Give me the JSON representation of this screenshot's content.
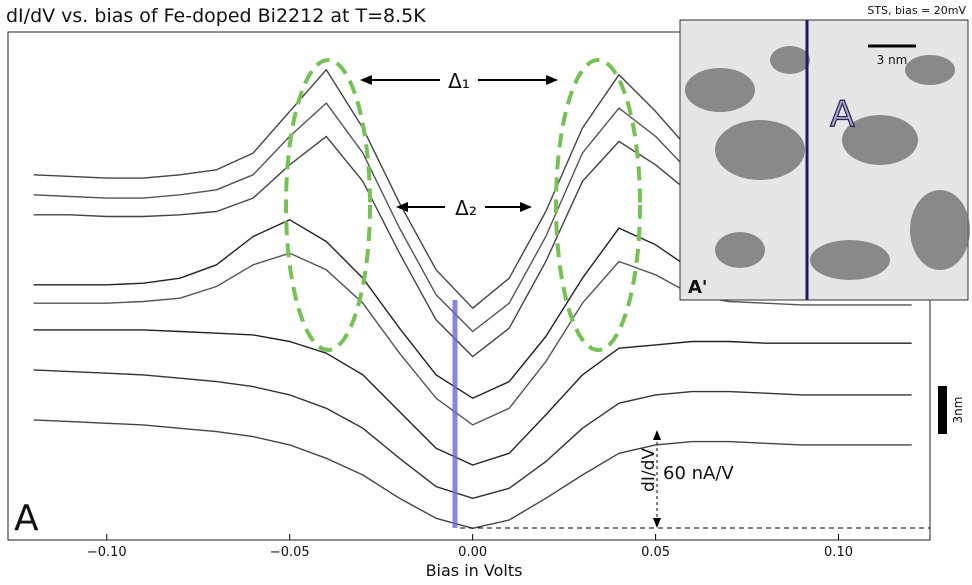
{
  "chart_data": {
    "type": "line",
    "title": "dI/dV vs. bias of Fe-doped Bi2212 at T=8.5K",
    "x_label": "Bias in Volts",
    "panel_label": "A",
    "annotations": {
      "delta1": "Δ₁",
      "delta2": "Δ₂",
      "scale_axis": "dI/dV",
      "scale_value": "60 nA/V",
      "distance_bar": "3nm"
    },
    "inset": {
      "title": "STS, bias = 20mV",
      "scale_bar": "3 nm",
      "end_a": "A",
      "end_a_prime": "A'"
    },
    "x": [
      -0.12,
      -0.11,
      -0.1,
      -0.09,
      -0.08,
      -0.07,
      -0.06,
      -0.05,
      -0.04,
      -0.03,
      -0.02,
      -0.01,
      0.0,
      0.01,
      0.02,
      0.03,
      0.04,
      0.05,
      0.06,
      0.07,
      0.08,
      0.09,
      0.1,
      0.11,
      0.12
    ],
    "series": [
      {
        "color": "#444444",
        "values": [
          212,
          211,
          210,
          210,
          212,
          215,
          225,
          250,
          275,
          240,
          195,
          155,
          132,
          150,
          190,
          240,
          272,
          250,
          225,
          215,
          212,
          210,
          210,
          210,
          210
        ]
      },
      {
        "color": "#555555",
        "values": [
          200,
          199,
          198,
          198,
          200,
          203,
          212,
          235,
          255,
          225,
          180,
          140,
          118,
          135,
          175,
          225,
          252,
          235,
          212,
          203,
          200,
          198,
          198,
          198,
          198
        ]
      },
      {
        "color": "#444444",
        "values": [
          188,
          188,
          187,
          187,
          188,
          190,
          198,
          218,
          235,
          208,
          165,
          125,
          103,
          120,
          160,
          208,
          232,
          218,
          200,
          191,
          188,
          187,
          187,
          187,
          187
        ]
      },
      {
        "color": "#222222",
        "values": [
          146,
          146,
          146,
          147,
          150,
          158,
          175,
          185,
          172,
          150,
          120,
          92,
          78,
          88,
          115,
          150,
          180,
          170,
          155,
          150,
          148,
          147,
          147,
          146,
          146
        ]
      },
      {
        "color": "#555555",
        "values": [
          135,
          135,
          135,
          136,
          138,
          145,
          158,
          165,
          155,
          135,
          105,
          78,
          62,
          72,
          100,
          135,
          160,
          152,
          140,
          136,
          135,
          134,
          134,
          134,
          134
        ]
      },
      {
        "color": "#222222",
        "values": [
          119,
          119,
          119,
          119,
          118,
          117,
          116,
          112,
          105,
          92,
          70,
          48,
          38,
          45,
          68,
          92,
          108,
          110,
          112,
          112,
          111,
          111,
          111,
          111,
          111
        ]
      },
      {
        "color": "#333333",
        "values": [
          95,
          94,
          93,
          92,
          90,
          88,
          85,
          80,
          72,
          60,
          42,
          25,
          18,
          24,
          40,
          60,
          75,
          80,
          82,
          82,
          81,
          80,
          80,
          80,
          80
        ]
      },
      {
        "color": "#444444",
        "values": [
          65,
          64,
          63,
          62,
          60,
          58,
          55,
          50,
          42,
          32,
          18,
          6,
          0,
          5,
          18,
          32,
          45,
          50,
          52,
          52,
          51,
          50,
          50,
          50,
          50
        ]
      }
    ],
    "xlim": [
      -0.127,
      0.125
    ],
    "ylim": [
      -7,
      312
    ],
    "xticks": [
      {
        "value": -0.1,
        "label": "−0.10"
      },
      {
        "value": -0.05,
        "label": "−0.05"
      },
      {
        "value": 0,
        "label": "0.00"
      },
      {
        "value": 0.05,
        "label": "0.05"
      },
      {
        "value": 0.1,
        "label": "0.10"
      }
    ]
  }
}
